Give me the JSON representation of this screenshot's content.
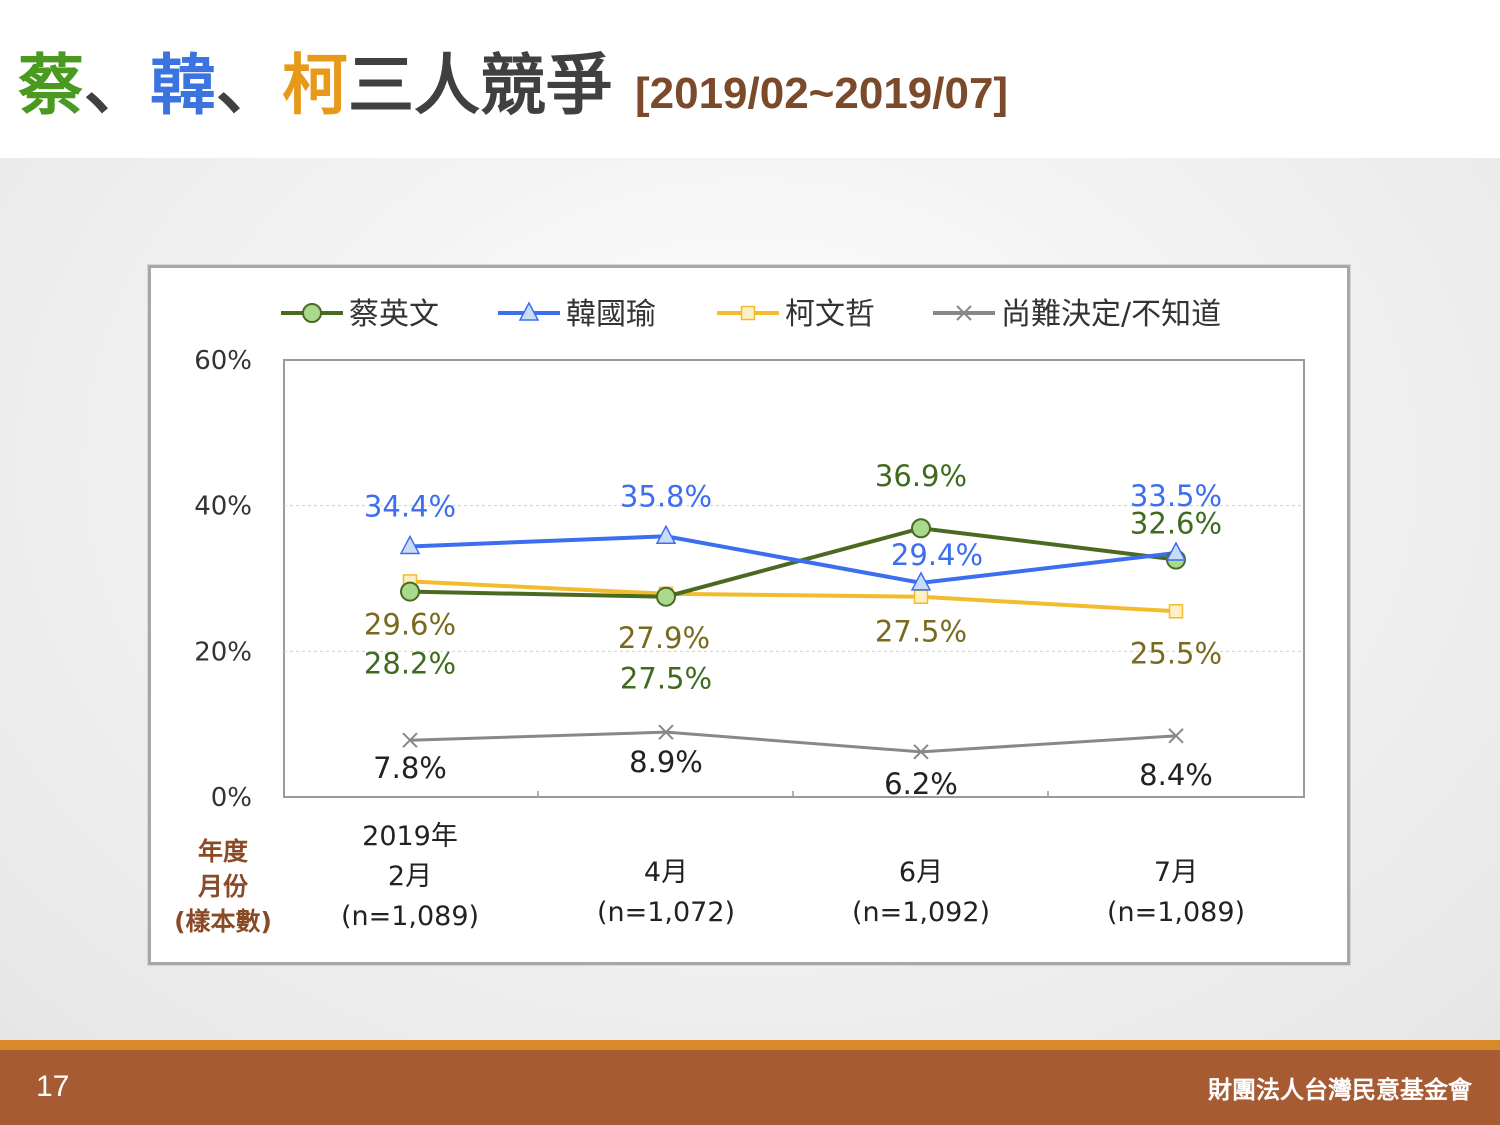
{
  "slide": {
    "title_parts": [
      {
        "text": "蔡",
        "color": "#4a9a22"
      },
      {
        "text": "、",
        "color": "#404040"
      },
      {
        "text": "韓",
        "color": "#3b73e0"
      },
      {
        "text": "、",
        "color": "#404040"
      },
      {
        "text": "柯",
        "color": "#e79a1a"
      },
      {
        "text": "三人競爭 ",
        "color": "#404040"
      }
    ],
    "title_range": "[2019/02~2019/07]",
    "title_range_color": "#7a4a2a",
    "page_number": "17",
    "organization": "財團法人台灣民意基金會"
  },
  "chart_data": {
    "type": "line",
    "categories": [
      "2019年 2月",
      "4月",
      "6月",
      "7月"
    ],
    "category_lines": [
      [
        "2019年",
        "2月",
        "(n=1,089)"
      ],
      [
        "4月",
        "(n=1,072)"
      ],
      [
        "6月",
        "(n=1,092)"
      ],
      [
        "7月",
        "(n=1,089)"
      ]
    ],
    "row_header": [
      "年度",
      "月份",
      "(樣本數)"
    ],
    "y_ticks": [
      "0%",
      "20%",
      "40%",
      "60%"
    ],
    "ylim": [
      0,
      60
    ],
    "grid": true,
    "legend_position": "top",
    "series": [
      {
        "name": "蔡英文",
        "values": [
          28.2,
          27.5,
          36.9,
          32.6
        ],
        "labels": [
          "28.2%",
          "27.5%",
          "36.9%",
          "32.6%"
        ],
        "color": "#4a6b1f",
        "marker": "circle",
        "marker_fill": "#a9d98c",
        "label_color": "#3f6b1e"
      },
      {
        "name": "韓國瑜",
        "values": [
          34.4,
          35.8,
          29.4,
          33.5
        ],
        "labels": [
          "34.4%",
          "35.8%",
          "29.4%",
          "33.5%"
        ],
        "color": "#3d6ef0",
        "marker": "triangle",
        "marker_fill": "#c9dcf7",
        "label_color": "#3d6ef0"
      },
      {
        "name": "柯文哲",
        "values": [
          29.6,
          27.9,
          27.5,
          25.5
        ],
        "labels": [
          "29.6%",
          "27.9%",
          "27.5%",
          "25.5%"
        ],
        "color": "#f2bc2e",
        "marker": "square",
        "marker_fill": "#fdf0c4",
        "label_color": "#7a6a1e"
      },
      {
        "name": "尚難決定/不知道",
        "values": [
          7.8,
          8.9,
          6.2,
          8.4
        ],
        "labels": [
          "7.8%",
          "8.9%",
          "6.2%",
          "8.4%"
        ],
        "color": "#888888",
        "marker": "x",
        "marker_fill": "#888888",
        "label_color": "#222222"
      }
    ]
  }
}
